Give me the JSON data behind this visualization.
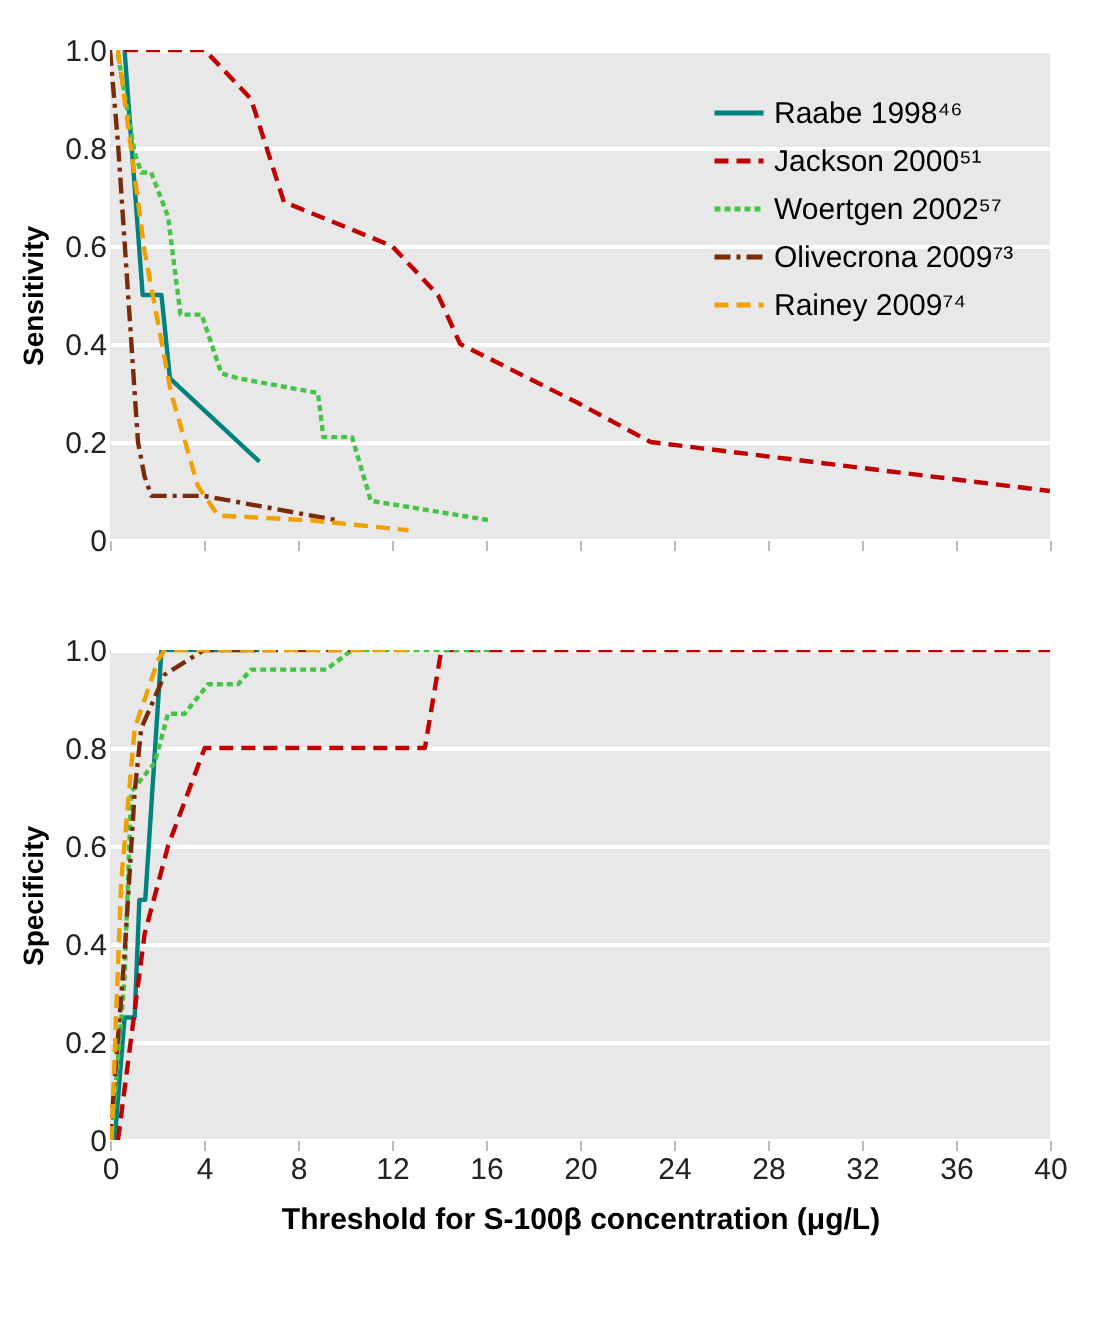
{
  "chart_data": [
    {
      "type": "line",
      "ylabel": "Sensitivity",
      "xlim": [
        0,
        40
      ],
      "xticks": [
        0,
        4,
        8,
        12,
        16,
        20,
        24,
        28,
        32,
        36,
        40
      ],
      "ylim": [
        0,
        1
      ],
      "yticks": [
        0,
        0.2,
        0.4,
        0.6,
        0.8,
        {
          "value": 1,
          "label": "1.0"
        }
      ],
      "grid": "y",
      "legend": "top right",
      "tick_labels": "y",
      "series": [
        {
          "name": "Raabe 1998⁴⁶",
          "color": "#00827f",
          "line_style": "solid",
          "x": [
            0.62,
            1.39,
            2.19,
            2.55,
            6.36
          ],
          "values": [
            1.0,
            0.5,
            0.5,
            0.33,
            0.16
          ]
        },
        {
          "name": "Jackson 2000⁵¹",
          "color": "#c00000",
          "line_style": "dashed",
          "x": [
            0.6,
            4.03,
            6.0,
            7.4,
            12.0,
            13.96,
            14.9,
            19.9,
            23.0,
            40.0
          ],
          "values": [
            1.0,
            1.0,
            0.9,
            0.69,
            0.6,
            0.5,
            0.4,
            0.28,
            0.2,
            0.1
          ]
        },
        {
          "name": "Woertgen 2002⁵⁷",
          "color": "#44c444",
          "line_style": "dotted",
          "x": [
            0.34,
            1.05,
            1.33,
            1.75,
            2.47,
            3.0,
            3.9,
            4.74,
            5.45,
            8.85,
            9.08,
            10.3,
            11.1,
            16.2
          ],
          "values": [
            0.99,
            0.79,
            0.75,
            0.75,
            0.66,
            0.46,
            0.46,
            0.34,
            0.33,
            0.3,
            0.21,
            0.21,
            0.08,
            0.04
          ]
        },
        {
          "name": "Olivecrona 2009⁷³",
          "color": "#7a2b0a",
          "line_style": "dashdot",
          "x": [
            0,
            0.34,
            1.19,
            1.47,
            1.76,
            4.0,
            9.7
          ],
          "values": [
            1.0,
            0.81,
            0.2,
            0.13,
            0.09,
            0.09,
            0.04
          ]
        },
        {
          "name": "Rainey 2009⁷⁴",
          "color": "#f0a000",
          "line_style": "dashed",
          "x": [
            0.34,
            1.47,
            2.6,
            3.74,
            4.6,
            8.57,
            12.7
          ],
          "values": [
            1.0,
            0.59,
            0.3,
            0.11,
            0.05,
            0.04,
            0.02
          ]
        }
      ]
    },
    {
      "type": "line",
      "ylabel": "Specificity",
      "xlabel": "Threshold for S-100β concentration (μg/L)",
      "xlim": [
        0,
        40
      ],
      "xticks": [
        0,
        4,
        8,
        12,
        16,
        20,
        24,
        28,
        32,
        36,
        40
      ],
      "ylim": [
        0,
        1
      ],
      "yticks": [
        0,
        0.2,
        0.4,
        0.6,
        0.8,
        {
          "value": 1,
          "label": "1.0"
        }
      ],
      "grid": "y",
      "series": [
        {
          "color": "#00827f",
          "line_style": "solid",
          "x": [
            0.2,
            0.62,
            1.05,
            1.25,
            1.5,
            2.19,
            6.36
          ],
          "values": [
            0,
            0.25,
            0.25,
            0.49,
            0.49,
            1.0,
            1.0
          ]
        },
        {
          "color": "#c00000",
          "line_style": "dashed",
          "x": [
            0.34,
            1.47,
            2.47,
            4.03,
            13.4,
            14.1,
            40.0
          ],
          "values": [
            0,
            0.42,
            0.6,
            0.8,
            0.8,
            1.0,
            1.0
          ]
        },
        {
          "color": "#44c444",
          "line_style": "dotted",
          "x": [
            0.06,
            0.62,
            0.9,
            1.9,
            2.47,
            3.18,
            4.17,
            5.45,
            6.0,
            9.2,
            10.3,
            16.2
          ],
          "values": [
            0,
            0.33,
            0.71,
            0.77,
            0.87,
            0.87,
            0.93,
            0.93,
            0.96,
            0.96,
            1.0,
            1.0
          ]
        },
        {
          "color": "#7a2b0a",
          "line_style": "dashdot",
          "x": [
            0,
            0.62,
            1.05,
            1.33,
            2.33,
            4.0,
            10.5
          ],
          "values": [
            0,
            0.38,
            0.71,
            0.84,
            0.95,
            1.0,
            1.0
          ]
        },
        {
          "color": "#f0a000",
          "line_style": "dashed",
          "x": [
            0.06,
            0.48,
            1.05,
            2.05,
            2.33,
            12.7
          ],
          "values": [
            0,
            0.53,
            0.84,
            0.98,
            1.0,
            1.0
          ]
        }
      ]
    }
  ]
}
